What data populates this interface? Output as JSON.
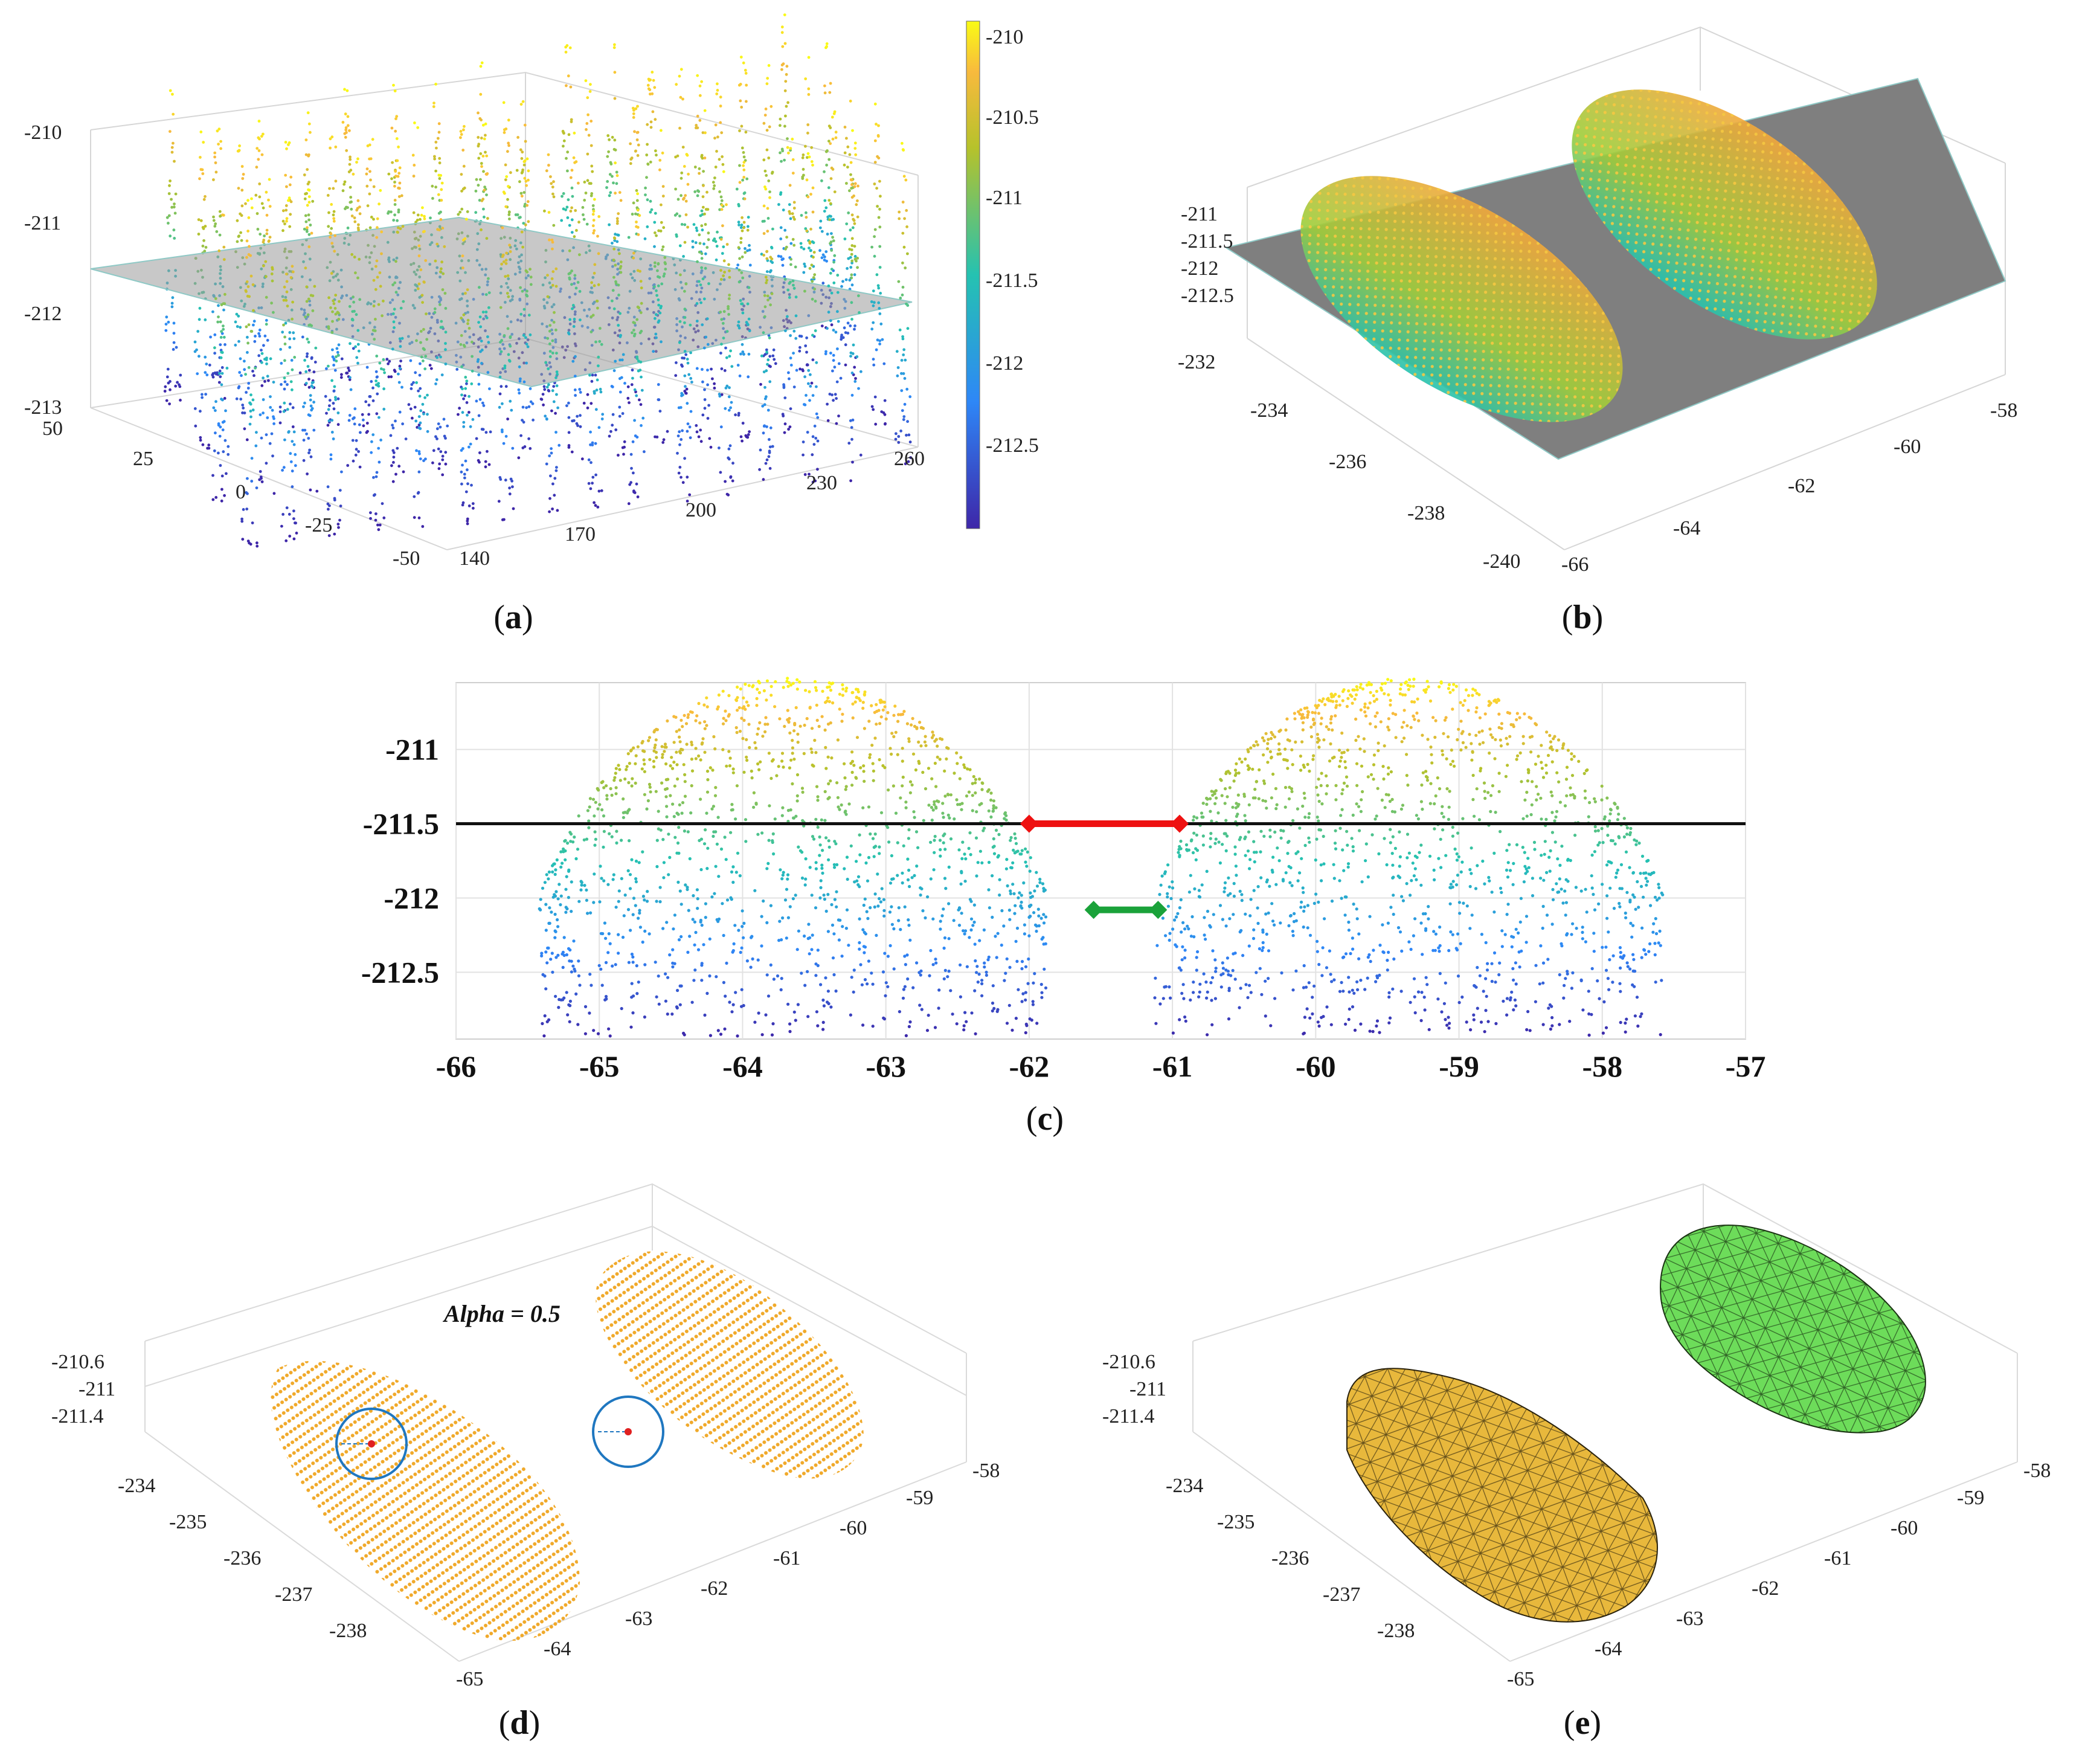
{
  "figure": {
    "captions": {
      "a": "a",
      "b": "b",
      "c": "c",
      "d": "d",
      "e": "e"
    }
  },
  "chart_data": [
    {
      "panel": "a",
      "type": "scatter",
      "title": "",
      "z_ticks": [
        "-210",
        "-211",
        "-212",
        "-213"
      ],
      "y_ticks": [
        "50",
        "25",
        "0",
        "-25",
        "-50"
      ],
      "x_ticks": [
        "140",
        "170",
        "200",
        "230",
        "260"
      ],
      "colorbar_ticks": [
        "-210",
        "-210.5",
        "-211",
        "-211.5",
        "-212",
        "-212.5"
      ],
      "zlim": [
        -213,
        -210
      ],
      "plane_z": -211.5,
      "peaks": {
        "rows": 4,
        "cols": 16
      }
    },
    {
      "panel": "b",
      "type": "scatter",
      "z_ticks": [
        "-211",
        "-211.5",
        "-212",
        "-212.5"
      ],
      "y_ticks": [
        "-232",
        "-234",
        "-236",
        "-238",
        "-240"
      ],
      "x_ticks": [
        "-66",
        "-64",
        "-62",
        "-60",
        "-58"
      ],
      "plane_z": -211.5
    },
    {
      "panel": "c",
      "type": "scatter",
      "xlim": [
        -66,
        -57
      ],
      "ylim": [
        -212.95,
        -210.55
      ],
      "x_ticks": [
        "-66",
        "-65",
        "-64",
        "-63",
        "-62",
        "-61",
        "-60",
        "-59",
        "-58",
        "-57"
      ],
      "y_ticks": [
        "-211",
        "-211.5",
        "-212",
        "-212.5"
      ],
      "threshold_line": {
        "y": -211.5,
        "x": [
          -66,
          -57
        ]
      },
      "red_segment": {
        "x": [
          -62,
          -60.95
        ],
        "y": -211.5
      },
      "green_segment": {
        "x": [
          -61.55,
          -61.1
        ],
        "y": -212.08
      },
      "mounds": [
        {
          "center": -63.65,
          "peak": -210.52,
          "left_edge": -65.3,
          "right_edge": -61.75
        },
        {
          "center": -59.35,
          "peak": -210.52,
          "left_edge": -61.0,
          "right_edge": -57.45
        }
      ]
    },
    {
      "panel": "d",
      "type": "scatter",
      "annotation": "Alpha = 0.5",
      "z_ticks": [
        "-210.6",
        "-211",
        "-211.4"
      ],
      "y_ticks": [
        "-234",
        "-235",
        "-236",
        "-237",
        "-238"
      ],
      "x_ticks": [
        "-65",
        "-64",
        "-63",
        "-62",
        "-61",
        "-60",
        "-59",
        "-58"
      ]
    },
    {
      "panel": "e",
      "type": "surface",
      "z_ticks": [
        "-210.6",
        "-211",
        "-211.4"
      ],
      "y_ticks": [
        "-234",
        "-235",
        "-236",
        "-237",
        "-238"
      ],
      "x_ticks": [
        "-65",
        "-64",
        "-63",
        "-62",
        "-61",
        "-60",
        "-59",
        "-58"
      ],
      "mesh_colors": [
        "#e8b83c",
        "#6ddc5a"
      ]
    }
  ]
}
